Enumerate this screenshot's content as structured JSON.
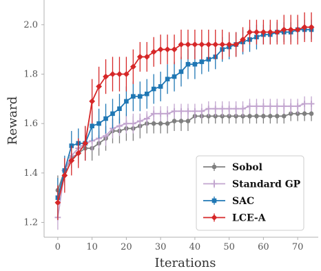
{
  "chart_data": {
    "type": "line",
    "title": "",
    "xlabel": "Iterations",
    "ylabel": "Reward",
    "xlim": [
      -4,
      76
    ],
    "ylim": [
      1.14,
      2.1
    ],
    "xticks": [
      0,
      10,
      20,
      30,
      40,
      50,
      60,
      70
    ],
    "yticks": [
      1.2,
      1.4,
      1.6,
      1.8,
      2.0
    ],
    "ytick_labels": [
      "1.2",
      "1.4",
      "1.6",
      "1.8",
      "2.0"
    ],
    "grid": false,
    "legend_position": "lower-right",
    "series": [
      {
        "name": "Sobol",
        "color": "#7f7f7f",
        "marker": "circle",
        "points": [
          [
            0,
            1.33,
            0.06
          ],
          [
            2,
            1.41,
            0.05
          ],
          [
            4,
            1.46,
            0.04
          ],
          [
            6,
            1.48,
            0.04
          ],
          [
            8,
            1.5,
            0.04
          ],
          [
            10,
            1.5,
            0.05
          ],
          [
            12,
            1.52,
            0.05
          ],
          [
            14,
            1.54,
            0.05
          ],
          [
            16,
            1.57,
            0.05
          ],
          [
            18,
            1.57,
            0.05
          ],
          [
            20,
            1.58,
            0.05
          ],
          [
            22,
            1.58,
            0.05
          ],
          [
            24,
            1.59,
            0.05
          ],
          [
            26,
            1.6,
            0.04
          ],
          [
            28,
            1.6,
            0.04
          ],
          [
            30,
            1.6,
            0.04
          ],
          [
            32,
            1.6,
            0.04
          ],
          [
            34,
            1.61,
            0.04
          ],
          [
            36,
            1.61,
            0.04
          ],
          [
            38,
            1.61,
            0.04
          ],
          [
            40,
            1.63,
            0.03
          ],
          [
            42,
            1.63,
            0.03
          ],
          [
            44,
            1.63,
            0.03
          ],
          [
            46,
            1.63,
            0.03
          ],
          [
            48,
            1.63,
            0.03
          ],
          [
            50,
            1.63,
            0.03
          ],
          [
            52,
            1.63,
            0.03
          ],
          [
            54,
            1.63,
            0.03
          ],
          [
            56,
            1.63,
            0.03
          ],
          [
            58,
            1.63,
            0.03
          ],
          [
            60,
            1.63,
            0.03
          ],
          [
            62,
            1.63,
            0.03
          ],
          [
            64,
            1.63,
            0.03
          ],
          [
            66,
            1.63,
            0.03
          ],
          [
            68,
            1.64,
            0.03
          ],
          [
            70,
            1.64,
            0.03
          ],
          [
            72,
            1.64,
            0.03
          ],
          [
            74,
            1.64,
            0.03
          ]
        ]
      },
      {
        "name": "Standard GP",
        "color": "#c2a5cf",
        "marker": "plus",
        "points": [
          [
            0,
            1.22,
            0.05
          ],
          [
            2,
            1.41,
            0.05
          ],
          [
            4,
            1.47,
            0.04
          ],
          [
            6,
            1.5,
            0.04
          ],
          [
            8,
            1.52,
            0.04
          ],
          [
            10,
            1.53,
            0.04
          ],
          [
            12,
            1.54,
            0.04
          ],
          [
            14,
            1.55,
            0.04
          ],
          [
            16,
            1.58,
            0.04
          ],
          [
            18,
            1.59,
            0.04
          ],
          [
            20,
            1.6,
            0.04
          ],
          [
            22,
            1.6,
            0.04
          ],
          [
            24,
            1.61,
            0.03
          ],
          [
            26,
            1.62,
            0.03
          ],
          [
            28,
            1.64,
            0.03
          ],
          [
            30,
            1.64,
            0.03
          ],
          [
            32,
            1.64,
            0.03
          ],
          [
            34,
            1.65,
            0.03
          ],
          [
            36,
            1.65,
            0.03
          ],
          [
            38,
            1.65,
            0.03
          ],
          [
            40,
            1.65,
            0.03
          ],
          [
            42,
            1.65,
            0.03
          ],
          [
            44,
            1.66,
            0.03
          ],
          [
            46,
            1.66,
            0.03
          ],
          [
            48,
            1.66,
            0.03
          ],
          [
            50,
            1.66,
            0.03
          ],
          [
            52,
            1.66,
            0.03
          ],
          [
            54,
            1.66,
            0.03
          ],
          [
            56,
            1.67,
            0.03
          ],
          [
            58,
            1.67,
            0.03
          ],
          [
            60,
            1.67,
            0.03
          ],
          [
            62,
            1.67,
            0.03
          ],
          [
            64,
            1.67,
            0.03
          ],
          [
            66,
            1.67,
            0.03
          ],
          [
            68,
            1.67,
            0.03
          ],
          [
            70,
            1.67,
            0.03
          ],
          [
            72,
            1.68,
            0.03
          ],
          [
            74,
            1.68,
            0.03
          ]
        ]
      },
      {
        "name": "SAC",
        "color": "#1f77b4",
        "marker": "square",
        "points": [
          [
            0,
            1.3,
            0.08
          ],
          [
            2,
            1.41,
            0.06
          ],
          [
            4,
            1.51,
            0.06
          ],
          [
            6,
            1.52,
            0.06
          ],
          [
            8,
            1.52,
            0.07
          ],
          [
            10,
            1.59,
            0.06
          ],
          [
            12,
            1.6,
            0.06
          ],
          [
            14,
            1.62,
            0.06
          ],
          [
            16,
            1.64,
            0.06
          ],
          [
            18,
            1.66,
            0.06
          ],
          [
            20,
            1.69,
            0.06
          ],
          [
            22,
            1.71,
            0.06
          ],
          [
            24,
            1.71,
            0.06
          ],
          [
            26,
            1.72,
            0.06
          ],
          [
            28,
            1.74,
            0.06
          ],
          [
            30,
            1.75,
            0.06
          ],
          [
            32,
            1.78,
            0.06
          ],
          [
            34,
            1.79,
            0.06
          ],
          [
            36,
            1.81,
            0.06
          ],
          [
            38,
            1.84,
            0.06
          ],
          [
            40,
            1.84,
            0.06
          ],
          [
            42,
            1.85,
            0.05
          ],
          [
            44,
            1.86,
            0.05
          ],
          [
            46,
            1.87,
            0.05
          ],
          [
            48,
            1.9,
            0.05
          ],
          [
            50,
            1.91,
            0.05
          ],
          [
            52,
            1.92,
            0.05
          ],
          [
            54,
            1.93,
            0.05
          ],
          [
            56,
            1.94,
            0.05
          ],
          [
            58,
            1.95,
            0.05
          ],
          [
            60,
            1.96,
            0.04
          ],
          [
            62,
            1.96,
            0.04
          ],
          [
            64,
            1.97,
            0.04
          ],
          [
            66,
            1.97,
            0.04
          ],
          [
            68,
            1.97,
            0.04
          ],
          [
            70,
            1.98,
            0.04
          ],
          [
            72,
            1.98,
            0.04
          ],
          [
            74,
            1.98,
            0.04
          ]
        ]
      },
      {
        "name": "LCE-A",
        "color": "#d62728",
        "marker": "diamond",
        "points": [
          [
            0,
            1.28,
            0.07
          ],
          [
            2,
            1.39,
            0.07
          ],
          [
            4,
            1.45,
            0.06
          ],
          [
            6,
            1.48,
            0.06
          ],
          [
            8,
            1.52,
            0.07
          ],
          [
            10,
            1.69,
            0.09
          ],
          [
            12,
            1.75,
            0.08
          ],
          [
            14,
            1.79,
            0.07
          ],
          [
            16,
            1.8,
            0.07
          ],
          [
            18,
            1.8,
            0.07
          ],
          [
            20,
            1.8,
            0.07
          ],
          [
            22,
            1.83,
            0.07
          ],
          [
            24,
            1.87,
            0.06
          ],
          [
            26,
            1.87,
            0.06
          ],
          [
            28,
            1.89,
            0.06
          ],
          [
            30,
            1.9,
            0.06
          ],
          [
            32,
            1.9,
            0.06
          ],
          [
            34,
            1.9,
            0.06
          ],
          [
            36,
            1.92,
            0.06
          ],
          [
            38,
            1.92,
            0.06
          ],
          [
            40,
            1.92,
            0.06
          ],
          [
            42,
            1.92,
            0.06
          ],
          [
            44,
            1.92,
            0.06
          ],
          [
            46,
            1.92,
            0.06
          ],
          [
            48,
            1.92,
            0.06
          ],
          [
            50,
            1.92,
            0.05
          ],
          [
            52,
            1.92,
            0.05
          ],
          [
            54,
            1.94,
            0.05
          ],
          [
            56,
            1.97,
            0.05
          ],
          [
            58,
            1.97,
            0.05
          ],
          [
            60,
            1.97,
            0.05
          ],
          [
            62,
            1.97,
            0.05
          ],
          [
            64,
            1.97,
            0.05
          ],
          [
            66,
            1.98,
            0.06
          ],
          [
            68,
            1.98,
            0.06
          ],
          [
            70,
            1.98,
            0.06
          ],
          [
            72,
            1.99,
            0.06
          ],
          [
            74,
            1.99,
            0.06
          ]
        ]
      }
    ]
  }
}
